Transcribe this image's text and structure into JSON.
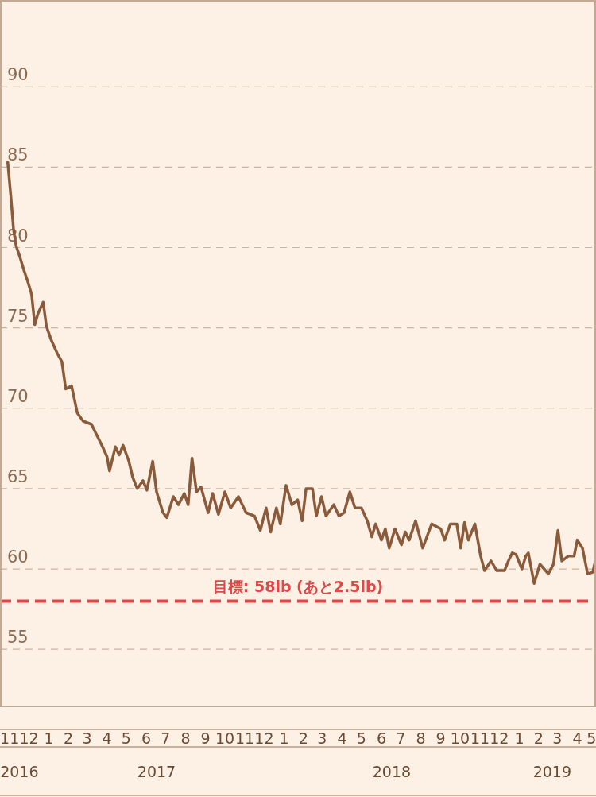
{
  "chart_data": {
    "type": "line",
    "xlim": [
      "2016-11-01",
      "2019-05-15"
    ],
    "ylim": [
      51.4,
      95.4
    ],
    "yticks": [
      55,
      60,
      65,
      70,
      75,
      80,
      85,
      90
    ],
    "grid": "y",
    "line_style": "solid",
    "marker": "none",
    "xticks": [
      {
        "value": "2016-11-16",
        "label": "11"
      },
      {
        "value": "2016-12-16",
        "label": "12"
      },
      {
        "value": "2017-01-16",
        "label": "1"
      },
      {
        "value": "2017-02-15",
        "label": "2"
      },
      {
        "value": "2017-03-16",
        "label": "3"
      },
      {
        "value": "2017-04-16",
        "label": "4"
      },
      {
        "value": "2017-05-16",
        "label": "5"
      },
      {
        "value": "2017-06-16",
        "label": "6"
      },
      {
        "value": "2017-07-16",
        "label": "7"
      },
      {
        "value": "2017-08-16",
        "label": "8"
      },
      {
        "value": "2017-09-16",
        "label": "9"
      },
      {
        "value": "2017-10-16",
        "label": "10"
      },
      {
        "value": "2017-11-16",
        "label": "11"
      },
      {
        "value": "2017-12-16",
        "label": "12"
      },
      {
        "value": "2018-01-16",
        "label": "1"
      },
      {
        "value": "2018-02-15",
        "label": "2"
      },
      {
        "value": "2018-03-16",
        "label": "3"
      },
      {
        "value": "2018-04-16",
        "label": "4"
      },
      {
        "value": "2018-05-16",
        "label": "5"
      },
      {
        "value": "2018-06-16",
        "label": "6"
      },
      {
        "value": "2018-07-16",
        "label": "7"
      },
      {
        "value": "2018-08-16",
        "label": "8"
      },
      {
        "value": "2018-09-16",
        "label": "9"
      },
      {
        "value": "2018-10-16",
        "label": "10"
      },
      {
        "value": "2018-11-16",
        "label": "11"
      },
      {
        "value": "2018-12-16",
        "label": "12"
      },
      {
        "value": "2019-01-16",
        "label": "1"
      },
      {
        "value": "2019-02-15",
        "label": "2"
      },
      {
        "value": "2019-03-16",
        "label": "3"
      },
      {
        "value": "2019-04-16",
        "label": "4"
      },
      {
        "value": "2019-05-08",
        "label": "5"
      }
    ],
    "x2lim": [
      "2016-11-01",
      "2019-05-15"
    ],
    "x2ticks": [
      {
        "value": "2016-12-01",
        "label": "2016"
      },
      {
        "value": "2017-07-02",
        "label": "2017"
      },
      {
        "value": "2018-07-02",
        "label": "2018"
      },
      {
        "value": "2019-03-08",
        "label": "2019"
      }
    ],
    "ref_lines": [
      {
        "axis": "y",
        "value": 58,
        "label": "目標: 58lb (あと2.5lb)",
        "color": "#e04848",
        "line_style": "dashed"
      }
    ],
    "series": [
      {
        "color": "#8b5a3a",
        "x": [
          "2016-11-13",
          "2016-11-18",
          "2016-11-22",
          "2016-11-26",
          "2016-12-02",
          "2016-12-08",
          "2016-12-14",
          "2016-12-20",
          "2016-12-25",
          "2016-12-30",
          "2017-01-07",
          "2017-01-12",
          "2017-01-20",
          "2017-01-29",
          "2017-02-05",
          "2017-02-11",
          "2017-02-20",
          "2017-03-01",
          "2017-03-10",
          "2017-03-23",
          "2017-03-29",
          "2017-04-08",
          "2017-04-16",
          "2017-04-20",
          "2017-04-29",
          "2017-05-05",
          "2017-05-11",
          "2017-05-20",
          "2017-05-26",
          "2017-06-02",
          "2017-06-11",
          "2017-06-17",
          "2017-06-26",
          "2017-07-02",
          "2017-07-12",
          "2017-07-18",
          "2017-07-28",
          "2017-08-05",
          "2017-08-14",
          "2017-08-20",
          "2017-08-26",
          "2017-09-02",
          "2017-09-09",
          "2017-09-20",
          "2017-09-27",
          "2017-10-06",
          "2017-10-16",
          "2017-10-25",
          "2017-11-06",
          "2017-11-18",
          "2017-12-01",
          "2017-12-10",
          "2017-12-19",
          "2017-12-26",
          "2018-01-04",
          "2018-01-10",
          "2018-01-19",
          "2018-01-28",
          "2018-02-06",
          "2018-02-13",
          "2018-02-19",
          "2018-03-01",
          "2018-03-07",
          "2018-03-15",
          "2018-03-22",
          "2018-04-03",
          "2018-04-11",
          "2018-04-19",
          "2018-04-28",
          "2018-05-06",
          "2018-05-16",
          "2018-05-25",
          "2018-06-01",
          "2018-06-07",
          "2018-06-16",
          "2018-06-22",
          "2018-06-28",
          "2018-07-07",
          "2018-07-17",
          "2018-07-23",
          "2018-07-29",
          "2018-08-08",
          "2018-08-19",
          "2018-09-02",
          "2018-09-16",
          "2018-09-22",
          "2018-10-01",
          "2018-10-11",
          "2018-10-17",
          "2018-10-23",
          "2018-10-29",
          "2018-11-08",
          "2018-11-17",
          "2018-11-23",
          "2018-12-03",
          "2018-12-12",
          "2018-12-24",
          "2018-12-30",
          "2019-01-05",
          "2019-01-11",
          "2019-01-20",
          "2019-01-26",
          "2019-01-30",
          "2019-02-08",
          "2019-02-17",
          "2019-03-02",
          "2019-03-10",
          "2019-03-17",
          "2019-03-23",
          "2019-04-02",
          "2019-04-11",
          "2019-04-16",
          "2019-04-24",
          "2019-05-02",
          "2019-05-10",
          "2019-05-14"
        ],
        "values": [
          85.3,
          83.1,
          81.1,
          80.1,
          79.4,
          78.6,
          77.9,
          77.1,
          75.2,
          75.9,
          76.6,
          75.1,
          74.2,
          73.4,
          72.9,
          71.2,
          71.4,
          69.7,
          69.2,
          69.0,
          68.5,
          67.7,
          67.0,
          66.1,
          67.6,
          67.1,
          67.7,
          66.7,
          65.7,
          65.0,
          65.5,
          64.9,
          66.7,
          64.8,
          63.5,
          63.2,
          64.5,
          64.0,
          64.7,
          64.0,
          66.9,
          64.8,
          65.1,
          63.5,
          64.7,
          63.4,
          64.8,
          63.8,
          64.5,
          63.5,
          63.3,
          62.4,
          63.8,
          62.3,
          63.8,
          62.8,
          65.2,
          64.0,
          64.3,
          63.0,
          65.0,
          65.0,
          63.3,
          64.5,
          63.3,
          64.0,
          63.3,
          63.5,
          64.8,
          63.8,
          63.8,
          63.0,
          62.0,
          62.8,
          61.8,
          62.5,
          61.3,
          62.5,
          61.5,
          62.3,
          61.8,
          63.0,
          61.3,
          62.8,
          62.5,
          61.8,
          62.8,
          62.8,
          61.3,
          62.9,
          61.8,
          62.8,
          60.8,
          59.9,
          60.5,
          59.9,
          59.9,
          60.5,
          61.0,
          60.9,
          60.0,
          60.8,
          61.0,
          59.1,
          60.3,
          59.7,
          60.3,
          62.4,
          60.5,
          60.8,
          60.8,
          61.8,
          61.3,
          59.7,
          59.8,
          60.5
        ]
      }
    ]
  }
}
